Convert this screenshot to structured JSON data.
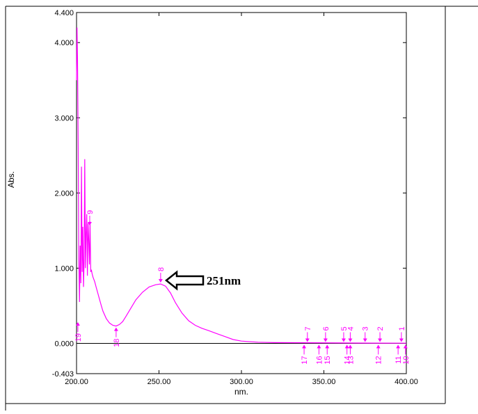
{
  "chart_data": {
    "type": "line",
    "xlabel": "nm.",
    "ylabel": "Abs.",
    "xlim": [
      200,
      400
    ],
    "ylim": [
      -0.403,
      4.4
    ],
    "x_ticks": [
      200,
      250,
      300,
      350,
      400
    ],
    "x_tick_labels": [
      "200.00",
      "250.00",
      "300.00",
      "350.00",
      "400.00"
    ],
    "y_ticks": [
      -0.403,
      0,
      1,
      2,
      3,
      4,
      4.4
    ],
    "y_tick_labels": [
      "-0.403",
      "0.000",
      "1.000",
      "2.000",
      "3.000",
      "4.000",
      "4.400"
    ],
    "color": "#ff00ff",
    "series": [
      {
        "x": [
          200,
          200.3,
          200.6,
          201,
          201.4,
          201.8,
          202.2,
          202.6,
          203,
          203.4,
          203.8,
          204.2,
          204.6,
          205,
          205.4,
          205.8,
          206.2,
          206.6,
          207,
          207.4,
          207.8,
          208.2,
          208.6,
          209,
          209.5,
          210,
          211,
          212,
          213,
          214,
          215,
          216,
          218,
          220,
          222,
          224,
          226,
          228,
          230,
          233,
          236,
          240,
          244,
          248,
          251,
          254,
          257,
          260,
          264,
          268,
          272,
          276,
          280,
          285,
          290,
          295,
          300,
          310,
          320,
          340,
          360,
          380,
          400
        ],
        "y": [
          3.5,
          4.2,
          3.8,
          2.6,
          1.1,
          0.55,
          1.3,
          0.8,
          2.35,
          0.95,
          1.55,
          0.75,
          1.1,
          2.45,
          1.0,
          1.45,
          1.72,
          0.9,
          1.6,
          1.38,
          1.05,
          1.62,
          0.95,
          0.98,
          0.92,
          0.88,
          0.82,
          0.74,
          0.66,
          0.58,
          0.5,
          0.43,
          0.33,
          0.27,
          0.24,
          0.23,
          0.25,
          0.29,
          0.36,
          0.47,
          0.58,
          0.68,
          0.75,
          0.78,
          0.79,
          0.76,
          0.67,
          0.54,
          0.4,
          0.3,
          0.24,
          0.2,
          0.17,
          0.13,
          0.09,
          0.05,
          0.03,
          0.015,
          0.01,
          0.008,
          0.005,
          0.003,
          0.002
        ]
      }
    ],
    "peaks": [
      {
        "label": "1",
        "x": 397,
        "y": 0.0
      },
      {
        "label": "2",
        "x": 384,
        "y": 0.0
      },
      {
        "label": "3",
        "x": 375,
        "y": 0.0
      },
      {
        "label": "4",
        "x": 366,
        "y": 0.0
      },
      {
        "label": "5",
        "x": 362,
        "y": 0.0
      },
      {
        "label": "6",
        "x": 351,
        "y": 0.0
      },
      {
        "label": "7",
        "x": 340,
        "y": 0.0
      },
      {
        "label": "8",
        "x": 251,
        "y": 0.79
      },
      {
        "label": "9",
        "x": 208,
        "y": 1.55
      }
    ],
    "valleys": [
      {
        "label": "10",
        "x": 399.5,
        "y": 0.0
      },
      {
        "label": "11",
        "x": 395,
        "y": 0.0
      },
      {
        "label": "12",
        "x": 383,
        "y": 0.0
      },
      {
        "label": "13",
        "x": 366,
        "y": 0.0
      },
      {
        "label": "14",
        "x": 364,
        "y": 0.0
      },
      {
        "label": "15",
        "x": 352,
        "y": 0.0
      },
      {
        "label": "16",
        "x": 347,
        "y": 0.0
      },
      {
        "label": "17",
        "x": 338,
        "y": 0.0
      },
      {
        "label": "18",
        "x": 224,
        "y": 0.23
      },
      {
        "label": "19",
        "x": 200.8,
        "y": 0.3
      }
    ],
    "annotation": {
      "text": "251nm",
      "x": 251,
      "y": 0.79
    }
  }
}
